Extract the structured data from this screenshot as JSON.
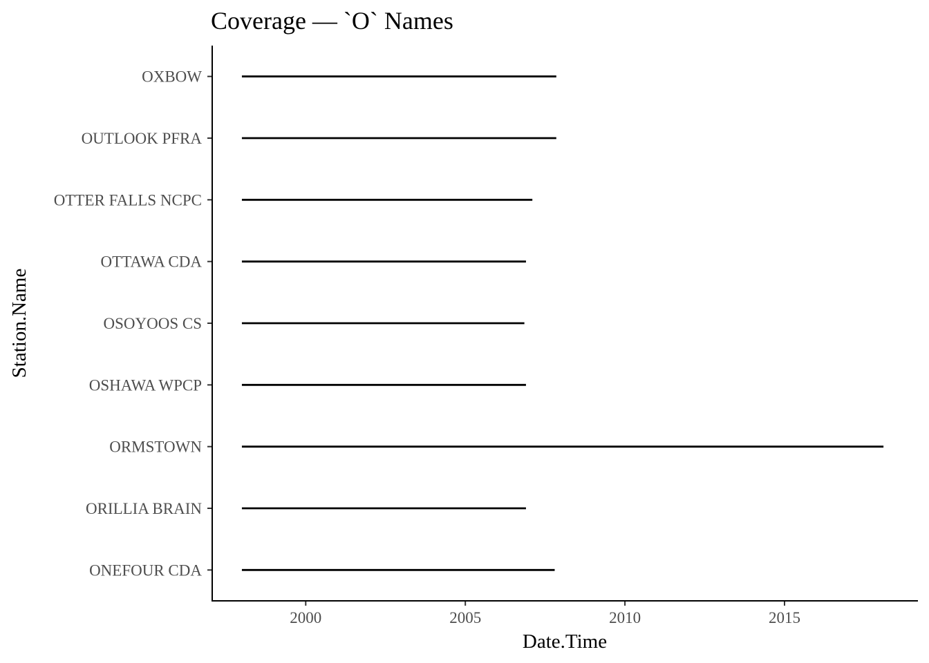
{
  "chart_data": {
    "type": "line",
    "title": "Coverage — `O` Names",
    "xlabel": "Date.Time",
    "ylabel": "Station.Name",
    "xlim": [
      1997.07,
      2019.18
    ],
    "xticks": [
      2000,
      2005,
      2010,
      2015
    ],
    "grid": false,
    "categories": [
      "ONEFOUR CDA",
      "ORILLIA BRAIN",
      "ORMSTOWN",
      "OSHAWA WPCP",
      "OSOYOOS CS",
      "OTTAWA CDA",
      "OTTER FALLS NCPC",
      "OUTLOOK PFRA",
      "OXBOW"
    ],
    "series": [
      {
        "station": "ONEFOUR CDA",
        "x": [
          1998.0,
          2007.8
        ]
      },
      {
        "station": "ORILLIA BRAIN",
        "x": [
          1998.0,
          2006.9
        ]
      },
      {
        "station": "ORMSTOWN",
        "x": [
          1998.0,
          2018.1
        ]
      },
      {
        "station": "OSHAWA WPCP",
        "x": [
          1998.0,
          2006.9
        ]
      },
      {
        "station": "OSOYOOS CS",
        "x": [
          1998.0,
          2006.85
        ]
      },
      {
        "station": "OTTAWA CDA",
        "x": [
          1998.0,
          2006.9
        ]
      },
      {
        "station": "OTTER FALLS NCPC",
        "x": [
          1998.0,
          2007.1
        ]
      },
      {
        "station": "OUTLOOK PFRA",
        "x": [
          1998.0,
          2007.85
        ]
      },
      {
        "station": "OXBOW",
        "x": [
          1998.0,
          2007.85
        ]
      }
    ]
  }
}
